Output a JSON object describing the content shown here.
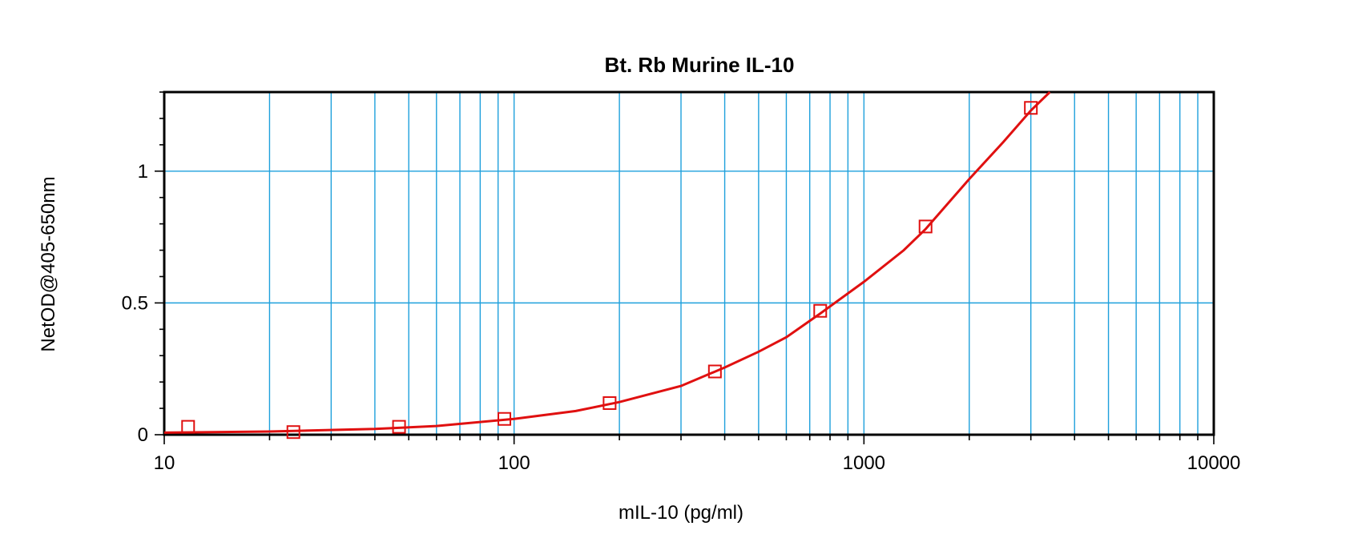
{
  "chart_data": {
    "type": "scatter",
    "title": "Bt. Rb Murine IL-10",
    "xlabel": "mIL-10 (pg/ml)",
    "ylabel": "NetOD@405-650nm",
    "x_scale": "log",
    "xlim": [
      10,
      10000
    ],
    "ylim": [
      0,
      1.3
    ],
    "x_ticks": [
      {
        "value": 10,
        "label": "10"
      },
      {
        "value": 100,
        "label": "100"
      },
      {
        "value": 1000,
        "label": "1000"
      },
      {
        "value": 10000,
        "label": "10000"
      }
    ],
    "y_ticks": [
      {
        "value": 0,
        "label": "0"
      },
      {
        "value": 0.5,
        "label": "0.5"
      },
      {
        "value": 1,
        "label": "1"
      }
    ],
    "grid": true,
    "legend": "none",
    "colors": {
      "grid": "#1ea0dc",
      "series": "#e01010",
      "axes": "#000000"
    },
    "series": [
      {
        "marker": "open-square",
        "points": [
          {
            "x": 11.7,
            "y": 0.03
          },
          {
            "x": 23.4,
            "y": 0.01
          },
          {
            "x": 46.9,
            "y": 0.03
          },
          {
            "x": 93.8,
            "y": 0.06
          },
          {
            "x": 187.5,
            "y": 0.12
          },
          {
            "x": 375,
            "y": 0.24
          },
          {
            "x": 750,
            "y": 0.47
          },
          {
            "x": 1500,
            "y": 0.79
          },
          {
            "x": 3000,
            "y": 1.24
          }
        ]
      }
    ],
    "fit_curve": {
      "type": "line",
      "points": [
        {
          "x": 10,
          "y": 0.008
        },
        {
          "x": 20,
          "y": 0.012
        },
        {
          "x": 40,
          "y": 0.022
        },
        {
          "x": 60,
          "y": 0.033
        },
        {
          "x": 100,
          "y": 0.06
        },
        {
          "x": 150,
          "y": 0.09
        },
        {
          "x": 200,
          "y": 0.124
        },
        {
          "x": 300,
          "y": 0.185
        },
        {
          "x": 400,
          "y": 0.255
        },
        {
          "x": 500,
          "y": 0.315
        },
        {
          "x": 600,
          "y": 0.37
        },
        {
          "x": 750,
          "y": 0.46
        },
        {
          "x": 1000,
          "y": 0.58
        },
        {
          "x": 1300,
          "y": 0.7
        },
        {
          "x": 1500,
          "y": 0.78
        },
        {
          "x": 2000,
          "y": 0.97
        },
        {
          "x": 2500,
          "y": 1.11
        },
        {
          "x": 3000,
          "y": 1.23
        },
        {
          "x": 3400,
          "y": 1.3
        }
      ]
    }
  }
}
